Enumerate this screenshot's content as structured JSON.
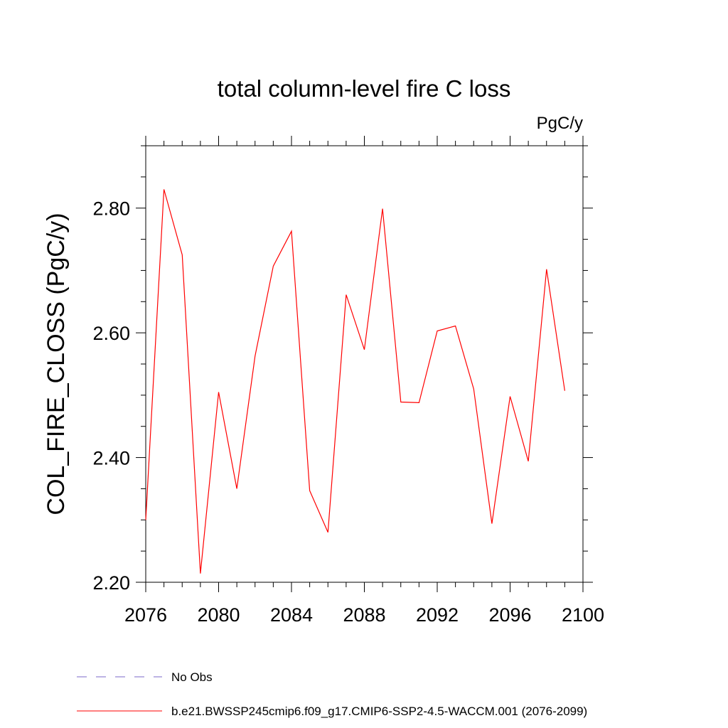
{
  "chart_data": {
    "type": "line",
    "title": "total column-level fire C loss",
    "units_label": "PgC/y",
    "ylabel": "COL_FIRE_CLOSS  (PgC/y)",
    "xlabel": "",
    "xlim": [
      2076,
      2100
    ],
    "ylim": [
      2.2,
      2.9
    ],
    "x_ticks": [
      2076,
      2080,
      2084,
      2088,
      2092,
      2096,
      2100
    ],
    "x_tick_labels": [
      "2076",
      "2080",
      "2084",
      "2088",
      "2092",
      "2096",
      "2100"
    ],
    "y_ticks": [
      2.2,
      2.4,
      2.6,
      2.8
    ],
    "y_tick_labels": [
      "2.20",
      "2.40",
      "2.60",
      "2.80"
    ],
    "grid": false,
    "legend_placement": "bottom",
    "series": [
      {
        "name": "No Obs",
        "color": "#7b68c8",
        "style": "dashed",
        "x": [],
        "y": []
      },
      {
        "name": "b.e21.BWSSP245cmip6.f09_g17.CMIP6-SSP2-4.5-WACCM.001 (2076-2099)",
        "color": "#ff0000",
        "style": "solid",
        "x": [
          2076,
          2077,
          2078,
          2079,
          2080,
          2081,
          2082,
          2083,
          2084,
          2085,
          2086,
          2087,
          2088,
          2089,
          2090,
          2091,
          2092,
          2093,
          2094,
          2095,
          2096,
          2097,
          2098,
          2099
        ],
        "y": [
          2.3,
          2.83,
          2.725,
          2.214,
          2.505,
          2.35,
          2.563,
          2.707,
          2.763,
          2.347,
          2.28,
          2.661,
          2.573,
          2.799,
          2.489,
          2.488,
          2.603,
          2.611,
          2.51,
          2.294,
          2.498,
          2.394,
          2.702,
          2.507
        ]
      }
    ]
  }
}
